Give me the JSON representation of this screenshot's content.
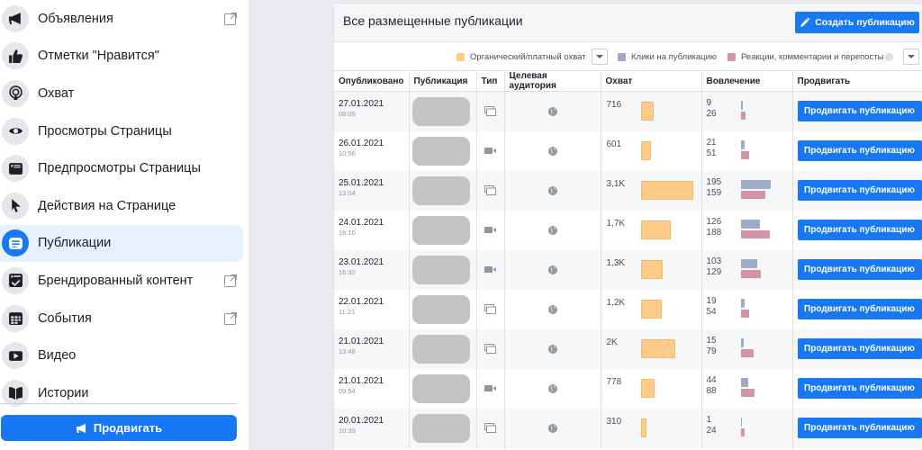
{
  "sidebar": {
    "items": [
      {
        "label": "Объявления",
        "icon": "megaphone-icon",
        "external": true,
        "active": false
      },
      {
        "label": "Отметки \"Нравится\"",
        "icon": "thumbs-up-icon",
        "external": false,
        "active": false
      },
      {
        "label": "Охват",
        "icon": "broadcast-icon",
        "external": false,
        "active": false
      },
      {
        "label": "Просмотры Страницы",
        "icon": "eye-icon",
        "external": false,
        "active": false
      },
      {
        "label": "Предпросмотры Страницы",
        "icon": "preview-window-icon",
        "external": false,
        "active": false
      },
      {
        "label": "Действия на Странице",
        "icon": "cursor-icon",
        "external": false,
        "active": false
      },
      {
        "label": "Публикации",
        "icon": "posts-icon",
        "external": false,
        "active": true
      },
      {
        "label": "Брендированный контент",
        "icon": "branded-content-icon",
        "external": true,
        "active": false
      },
      {
        "label": "События",
        "icon": "calendar-icon",
        "external": true,
        "active": false
      },
      {
        "label": "Видео",
        "icon": "video-play-icon",
        "external": false,
        "active": false
      },
      {
        "label": "Истории",
        "icon": "book-icon",
        "external": false,
        "active": false
      }
    ],
    "promote_label": "Продвигать"
  },
  "card": {
    "title": "Все размещенные публикации",
    "create_label": "Создать публикацию",
    "legend": [
      {
        "label": "Органический/платный охват",
        "color": "#ffcb89"
      },
      {
        "label": "Клики на публикацию",
        "color": "#9daac8"
      },
      {
        "label": "Реакции, комментарии и перепосты",
        "color": "#d394a8"
      }
    ]
  },
  "table": {
    "headers": [
      "Опубликовано",
      "Публикация",
      "Тип",
      "Целевая аудитория",
      "Охват",
      "Вовлечение",
      "Продвигать"
    ],
    "boost_label": "Продвигать публикацию",
    "rows": [
      {
        "date": "27.01.2021",
        "time": "08:05",
        "type": "album",
        "audience": "public",
        "reach": "716",
        "reach_w": 14,
        "clicks": "9",
        "reactions": "26",
        "clicks_w": 2,
        "reactions_w": 5
      },
      {
        "date": "26.01.2021",
        "time": "10:56",
        "type": "video",
        "audience": "public",
        "reach": "601",
        "reach_w": 11,
        "clicks": "21",
        "reactions": "51",
        "clicks_w": 4,
        "reactions_w": 9
      },
      {
        "date": "25.01.2021",
        "time": "13:04",
        "type": "album",
        "audience": "public",
        "reach": "3,1K",
        "reach_w": 58,
        "clicks": "195",
        "reactions": "159",
        "clicks_w": 33,
        "reactions_w": 27
      },
      {
        "date": "24.01.2021",
        "time": "16:10",
        "type": "video",
        "audience": "public",
        "reach": "1,7K",
        "reach_w": 33,
        "clicks": "126",
        "reactions": "188",
        "clicks_w": 21,
        "reactions_w": 32
      },
      {
        "date": "23.01.2021",
        "time": "16:32",
        "type": "video",
        "audience": "public",
        "reach": "1,3K",
        "reach_w": 24,
        "clicks": "103",
        "reactions": "129",
        "clicks_w": 18,
        "reactions_w": 22
      },
      {
        "date": "22.01.2021",
        "time": "11:21",
        "type": "album",
        "audience": "public",
        "reach": "1,2K",
        "reach_w": 23,
        "clicks": "19",
        "reactions": "54",
        "clicks_w": 4,
        "reactions_w": 9
      },
      {
        "date": "21.01.2021",
        "time": "13:48",
        "type": "album",
        "audience": "public",
        "reach": "2K",
        "reach_w": 38,
        "clicks": "15",
        "reactions": "79",
        "clicks_w": 3,
        "reactions_w": 14
      },
      {
        "date": "21.01.2021",
        "time": "09:54",
        "type": "video",
        "audience": "public",
        "reach": "778",
        "reach_w": 15,
        "clicks": "44",
        "reactions": "88",
        "clicks_w": 8,
        "reactions_w": 15
      },
      {
        "date": "20.01.2021",
        "time": "10:39",
        "type": "album",
        "audience": "public",
        "reach": "310",
        "reach_w": 6,
        "clicks": "1",
        "reactions": "24",
        "clicks_w": 1,
        "reactions_w": 4
      }
    ]
  },
  "colors": {
    "accent": "#1877f2",
    "reach_bar": "#ffcb89",
    "clicks_bar": "#9daac8",
    "reactions_bar": "#d394a8",
    "active_nav_bg": "#e7f0fd"
  }
}
